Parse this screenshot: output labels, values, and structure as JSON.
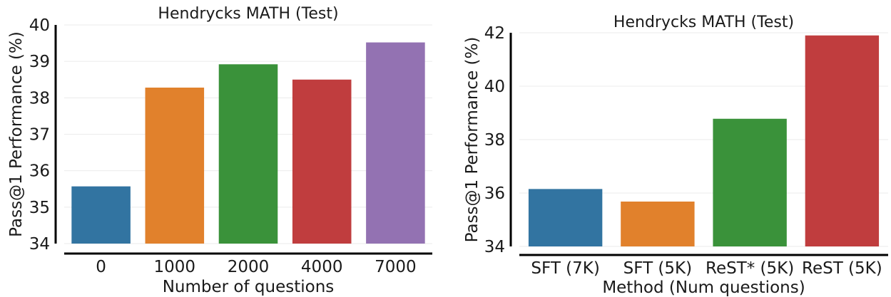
{
  "chart_data": [
    {
      "type": "bar",
      "title": "Hendrycks MATH (Test)",
      "xlabel": "Number of questions",
      "ylabel": "Pass@1 Performance (%)",
      "categories": [
        "0",
        "1000",
        "2000",
        "4000",
        "7000"
      ],
      "values": [
        35.57,
        38.28,
        38.92,
        38.5,
        39.52
      ],
      "colors": [
        "#3274a1",
        "#e1812c",
        "#3a923a",
        "#c03d3e",
        "#9372b2"
      ],
      "ylim": [
        34,
        40
      ],
      "yticks": [
        34,
        35,
        36,
        37,
        38,
        39,
        40
      ],
      "grid": true
    },
    {
      "type": "bar",
      "title": "Hendrycks MATH (Test)",
      "xlabel": "Method (Num questions)",
      "ylabel": "Pass@1 Performance (%)",
      "categories": [
        "SFT (7K)",
        "SFT (5K)",
        "ReST* (5K)",
        "ReST (5K)"
      ],
      "values": [
        36.15,
        35.68,
        38.78,
        41.9
      ],
      "colors": [
        "#3274a1",
        "#e1812c",
        "#3a923a",
        "#c03d3e"
      ],
      "ylim": [
        34,
        42
      ],
      "yticks": [
        34,
        36,
        38,
        40,
        42
      ],
      "grid": true
    }
  ]
}
